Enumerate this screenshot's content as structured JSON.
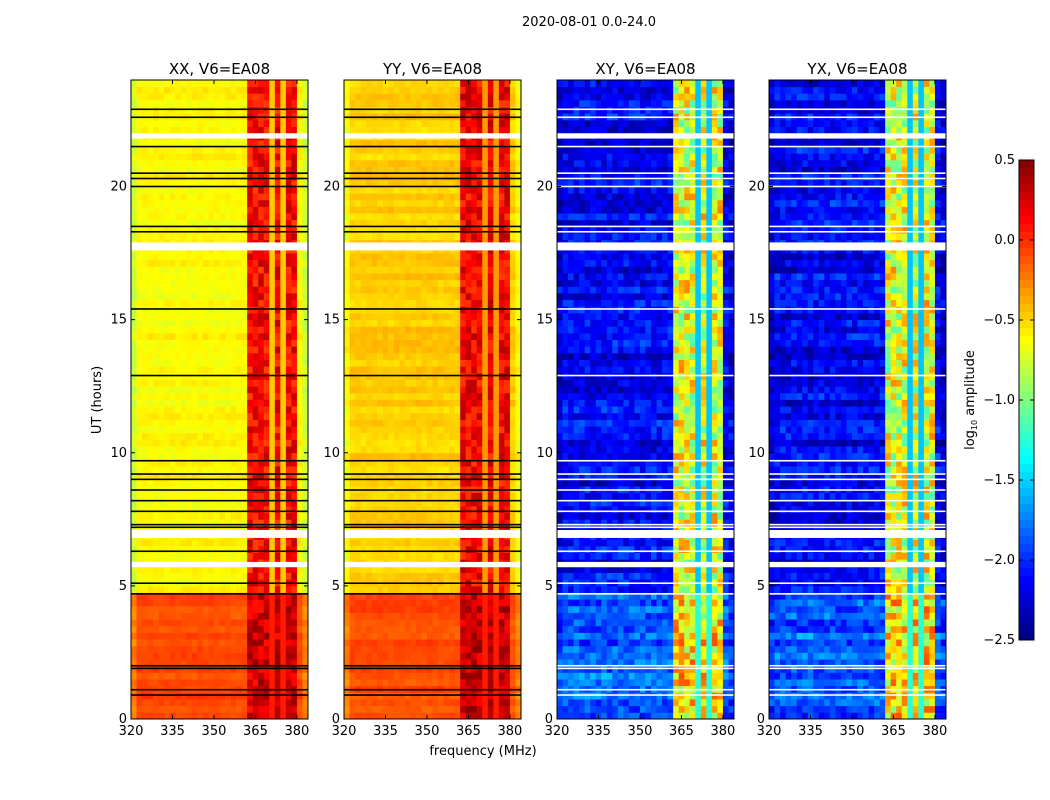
{
  "chart_data": {
    "type": "heatmap",
    "title": "2020-08-01 0.0-24.0",
    "xlabel": "frequency (MHz)",
    "ylabel": "UT (hours)",
    "xlim": [
      320,
      384
    ],
    "ylim": [
      0,
      24
    ],
    "xticks": [
      "320",
      "335",
      "350",
      "365",
      "380"
    ],
    "yticks": [
      "0",
      "5",
      "10",
      "15",
      "20"
    ],
    "grid": false,
    "colormap": "jet",
    "colorbar": {
      "label_parts": [
        "log",
        "10",
        " amplitude"
      ],
      "range": [
        -2.5,
        0.5
      ],
      "ticks": [
        "0.5",
        "0.0",
        "−0.5",
        "−1.0",
        "−1.5",
        "−2.0",
        "−2.5"
      ],
      "tick_values": [
        0.5,
        0.0,
        -0.5,
        -1.0,
        -1.5,
        -2.0,
        -2.5
      ],
      "placement": "right"
    },
    "rfi_channels_mhz": [
      [
        362,
        366
      ],
      [
        367,
        371
      ],
      [
        372,
        375
      ],
      [
        376,
        380
      ]
    ],
    "flagged_hours": [
      [
        21.8,
        22.0
      ],
      [
        17.6,
        17.9
      ],
      [
        6.8,
        7.1
      ],
      [
        5.7,
        5.9
      ]
    ],
    "blank_line_hours": [
      0.9,
      1.1,
      1.9,
      2.0,
      4.7,
      5.1,
      6.3,
      7.2,
      7.3,
      7.8,
      8.2,
      8.6,
      9.0,
      9.2,
      9.7,
      12.9,
      15.4,
      18.3,
      18.5,
      20.0,
      20.3,
      20.5,
      21.5,
      22.6,
      22.9
    ],
    "panels": [
      {
        "title": "XX, V6=EA08",
        "levels": [
          {
            "hours": [
              0,
              4.7
            ],
            "value": -0.1
          },
          {
            "hours": [
              4.7,
              24
            ],
            "value": -0.62
          }
        ],
        "rfi_value": 0.12,
        "flag_color": "#000000"
      },
      {
        "title": "YY, V6=EA08",
        "levels": [
          {
            "hours": [
              0,
              4.7
            ],
            "value": -0.1
          },
          {
            "hours": [
              4.7,
              24
            ],
            "value": -0.48
          }
        ],
        "rfi_value": 0.15,
        "flag_color": "#000000"
      },
      {
        "title": "XY, V6=EA08",
        "levels": [
          {
            "hours": [
              0,
              4.7
            ],
            "value": -1.85
          },
          {
            "hours": [
              4.7,
              24
            ],
            "value": -2.15
          }
        ],
        "rfi_value": -0.7,
        "flag_color": "#ffffff"
      },
      {
        "title": "YX, V6=EA08",
        "levels": [
          {
            "hours": [
              0,
              4.7
            ],
            "value": -1.85
          },
          {
            "hours": [
              4.7,
              24
            ],
            "value": -2.15
          }
        ],
        "rfi_value": -0.7,
        "flag_color": "#ffffff"
      }
    ]
  }
}
